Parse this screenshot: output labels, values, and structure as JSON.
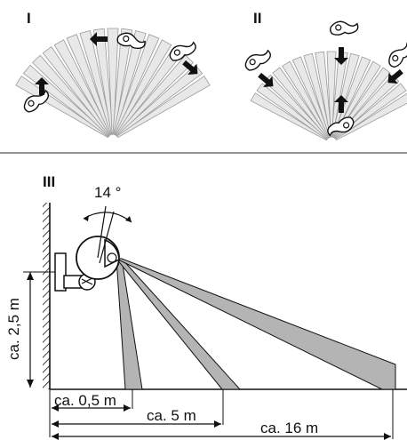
{
  "panels": {
    "top_left": {
      "label": "I"
    },
    "top_right": {
      "label": "II"
    },
    "bottom": {
      "label": "III"
    }
  },
  "detection": {
    "angle_label": "14 °",
    "mount_height_label": "ca. 2,5 m",
    "distances": [
      {
        "label": "ca. 0,5 m"
      },
      {
        "label": "ca. 5 m"
      },
      {
        "label": "ca. 16 m"
      }
    ]
  },
  "colors": {
    "beam_fill": "#e8e8e8",
    "beam_stroke": "#9a9a9a",
    "zone_fill": "#b4b4b4",
    "ink": "#111111",
    "arrow": "#111111"
  },
  "icons": [
    "walking-person-icon",
    "direction-arrow-icon",
    "motion-detector-icon",
    "wall-hatch-icon"
  ]
}
